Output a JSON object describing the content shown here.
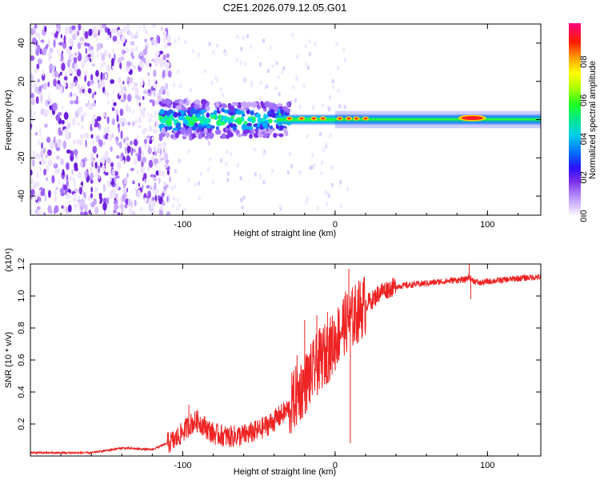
{
  "figure": {
    "title": "C2E1.2026.079.12.05.G01"
  },
  "chart_data": [
    {
      "type": "heatmap",
      "title": "C2E1.2026.079.12.05.G01",
      "xlabel": "Height of straight line (km)",
      "ylabel": "Frequency (Hz)",
      "xlim": [
        -200,
        135
      ],
      "ylim": [
        -50,
        50
      ],
      "xticks": [
        -100,
        0,
        100
      ],
      "yticks": [
        -40,
        -20,
        0,
        20,
        40
      ],
      "x_tick_labels": [
        "-100",
        "0",
        "100"
      ],
      "y_tick_labels": [
        "-40",
        "-20",
        "0",
        "20",
        "40"
      ],
      "colorbar": {
        "label": "Normalized spectral amplitude",
        "range": [
          0.0,
          1.0
        ],
        "ticks": [
          0.0,
          0.2,
          0.4,
          0.6,
          0.8
        ],
        "tick_labels": [
          "0.0",
          "0.2",
          "0.4",
          "0.6",
          "0.8"
        ]
      },
      "description_points": {
        "noise_region_x": [
          -200,
          -110
        ],
        "narrow_line_center_freq": 0,
        "hot_spot_x": [
          84,
          96
        ],
        "moderate_spot_x": [
          -20,
          20
        ]
      }
    },
    {
      "type": "line",
      "title": "",
      "xlabel": "Height of straight line (km)",
      "ylabel": "SNR (10 * v/v)",
      "y_scale_note": "(x10⁴)",
      "xlim": [
        -200,
        135
      ],
      "ylim": [
        0.0,
        1.2
      ],
      "xticks": [
        -100,
        0,
        100
      ],
      "yticks": [
        0.2,
        0.4,
        0.6,
        0.8,
        1.0,
        1.2
      ],
      "x_tick_labels": [
        "-100",
        "0",
        "100"
      ],
      "y_tick_labels": [
        "0.2",
        "0.4",
        "0.6",
        "0.8",
        "1.0",
        "1.2"
      ],
      "series": [
        {
          "name": "SNR",
          "color": "#ee2222",
          "x": [
            -200,
            -160,
            -140,
            -120,
            -105,
            -95,
            -90,
            -85,
            -80,
            -70,
            -60,
            -50,
            -40,
            -30,
            -25,
            -20,
            -15,
            -10,
            -5,
            0,
            5,
            10,
            15,
            20,
            25,
            30,
            40,
            50,
            60,
            70,
            80,
            85,
            88,
            90,
            95,
            100,
            110,
            120,
            135
          ],
          "values": [
            0.02,
            0.02,
            0.05,
            0.04,
            0.1,
            0.2,
            0.22,
            0.18,
            0.14,
            0.12,
            0.13,
            0.16,
            0.22,
            0.3,
            0.38,
            0.45,
            0.52,
            0.6,
            0.65,
            0.72,
            0.82,
            0.85,
            0.9,
            0.95,
            0.98,
            1.03,
            1.06,
            1.07,
            1.08,
            1.09,
            1.1,
            1.1,
            1.12,
            1.1,
            1.08,
            1.09,
            1.1,
            1.11,
            1.12
          ]
        }
      ],
      "spikes": [
        {
          "x": -96,
          "y": 0.32
        },
        {
          "x": -25,
          "y": 0.63
        },
        {
          "x": -20,
          "y": 0.85
        },
        {
          "x": -12,
          "y": 0.88
        },
        {
          "x": -5,
          "y": 0.9
        },
        {
          "x": 9,
          "y": 1.17
        },
        {
          "x": 10,
          "y": 0.08
        },
        {
          "x": 88,
          "y": 1.2
        },
        {
          "x": 89,
          "y": 0.98
        }
      ]
    }
  ]
}
